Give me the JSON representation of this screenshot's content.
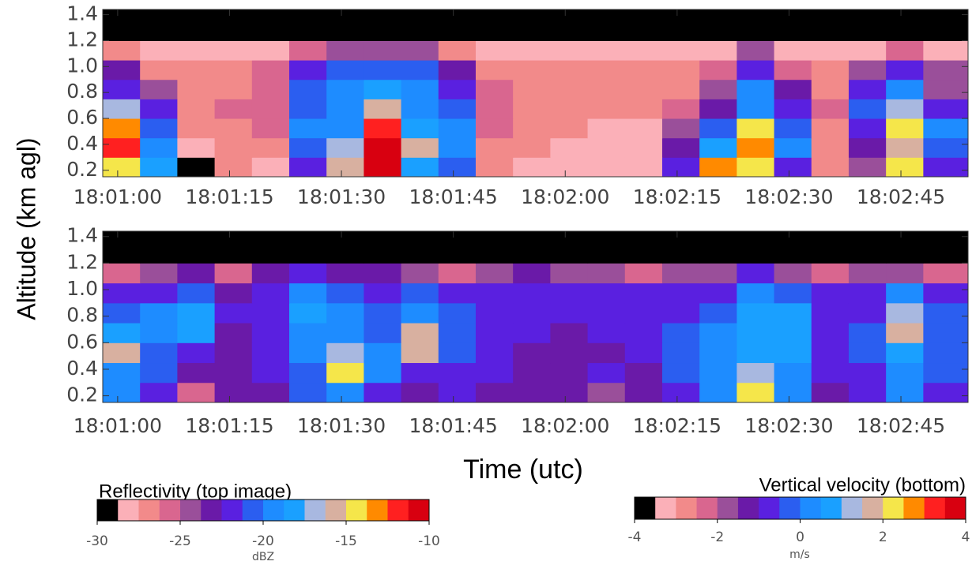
{
  "chart_data": [
    {
      "type": "heatmap",
      "ylabel": "Altitude (km agl)",
      "x_edges": [
        -2,
        3,
        8,
        13,
        18,
        23,
        28,
        33,
        38,
        43,
        48,
        53,
        58,
        63,
        68,
        73,
        78,
        83,
        88,
        93,
        98,
        103,
        108,
        114
      ],
      "y_edges": [
        0.15,
        0.3,
        0.45,
        0.6,
        0.75,
        0.9,
        1.05,
        1.2,
        1.44
      ],
      "values": [
        [
          -14,
          -18,
          -29,
          -27,
          -28,
          -22,
          -16,
          -11,
          -18,
          -21,
          -27,
          -28,
          -28,
          -28,
          -28,
          -22,
          -13,
          -15,
          -22,
          -27,
          -24,
          -14,
          -22
        ],
        [
          -12,
          -20,
          -28,
          -27,
          -27,
          -21,
          -17,
          -11,
          -16,
          -20,
          -27,
          -27,
          -28,
          -28,
          -28,
          -23,
          -18,
          -13,
          -20,
          -27,
          -23,
          -16,
          -21
        ],
        [
          -13,
          -21,
          -27,
          -27,
          -26,
          -20,
          -19,
          -12,
          -18,
          -20,
          -26,
          -27,
          -27,
          -28,
          -28,
          -24,
          -21,
          -14,
          -21,
          -27,
          -22,
          -15,
          -20
        ],
        [
          -17,
          -22,
          -27,
          -26,
          -26,
          -21,
          -20,
          -16,
          -20,
          -21,
          -26,
          -27,
          -27,
          -27,
          -27,
          -26,
          -23,
          -19,
          -22,
          -26,
          -21,
          -17,
          -22
        ],
        [
          -22,
          -25,
          -27,
          -27,
          -26,
          -21,
          -20,
          -18,
          -20,
          -22,
          -26,
          -27,
          -27,
          -27,
          -27,
          -27,
          -24,
          -20,
          -23,
          -27,
          -22,
          -20,
          -24
        ],
        [
          -23,
          -27,
          -27,
          -27,
          -26,
          -22,
          -21,
          -21,
          -21,
          -23,
          -27,
          -27,
          -27,
          -27,
          -27,
          -27,
          -26,
          -22,
          -26,
          -27,
          -25,
          -22,
          -25
        ],
        [
          -27,
          -28,
          -28,
          -28,
          -28,
          -26,
          -24,
          -24,
          -25,
          -27,
          -28,
          -28,
          -28,
          -28,
          -28,
          -28,
          -28,
          -25,
          -28,
          -28,
          -28,
          -26,
          -28
        ],
        [
          -30,
          -30,
          -30,
          -30,
          -30,
          -30,
          -30,
          -30,
          -30,
          -30,
          -30,
          -30,
          -30,
          -30,
          -30,
          -30,
          -30,
          -30,
          -30,
          -30,
          -30,
          -30,
          -30
        ]
      ],
      "xlim": [
        -2,
        114
      ],
      "ylim": [
        0.15,
        1.44
      ],
      "xticks": [
        {
          "value": 0,
          "label": "18:01:00"
        },
        {
          "value": 15,
          "label": "18:01:15"
        },
        {
          "value": 30,
          "label": "18:01:30"
        },
        {
          "value": 45,
          "label": "18:01:45"
        },
        {
          "value": 60,
          "label": "18:02:00"
        },
        {
          "value": 75,
          "label": "18:02:15"
        },
        {
          "value": 90,
          "label": "18:02:30"
        },
        {
          "value": 105,
          "label": "18:02:45"
        }
      ],
      "yticks": [
        {
          "value": 0.2,
          "label": "0.2"
        },
        {
          "value": 0.4,
          "label": "0.4"
        },
        {
          "value": 0.6,
          "label": "0.6"
        },
        {
          "value": 0.8,
          "label": "0.8"
        },
        {
          "value": 1.0,
          "label": "1.0"
        },
        {
          "value": 1.2,
          "label": "1.2"
        },
        {
          "value": 1.4,
          "label": "1.4"
        }
      ],
      "colorbar": {
        "title": "Reflectivity (top image)",
        "unit": "dBZ",
        "clim": [
          -30,
          -10
        ],
        "ticks": [
          -30,
          -25,
          -20,
          -15,
          -10
        ],
        "colors": [
          "#000000",
          "#fbb0b8",
          "#f28a8a",
          "#d9668f",
          "#9a4f9a",
          "#6a1aa8",
          "#5a20e0",
          "#2b5ef0",
          "#1e8cff",
          "#1aa0ff",
          "#a8b8e0",
          "#d8b0a0",
          "#f5e64a",
          "#ff8a00",
          "#ff2020",
          "#d80010"
        ]
      }
    },
    {
      "type": "heatmap",
      "xlabel": "Time (utc)",
      "x_edges": [
        -2,
        3,
        8,
        13,
        18,
        23,
        28,
        33,
        38,
        43,
        48,
        53,
        58,
        63,
        68,
        73,
        78,
        83,
        88,
        93,
        98,
        103,
        108,
        114
      ],
      "y_edges": [
        0.15,
        0.3,
        0.45,
        0.6,
        0.75,
        0.9,
        1.05,
        1.2,
        1.44
      ],
      "values": [
        [
          0.3,
          -0.8,
          -2.5,
          -1.3,
          -1.2,
          -0.5,
          0.4,
          -0.6,
          -1.1,
          -0.8,
          -1.2,
          -1.3,
          -1.4,
          -2.0,
          -1.3,
          -0.6,
          0.3,
          2.2,
          0.2,
          -1.2,
          -0.8,
          0.2,
          -0.7
        ],
        [
          0.4,
          -0.5,
          -1.5,
          -1.2,
          -1.0,
          -0.3,
          2.3,
          0.3,
          -0.8,
          -0.6,
          -1.0,
          -1.2,
          -1.3,
          -1.0,
          -1.1,
          -0.5,
          0.2,
          1.2,
          0.3,
          -1.0,
          -0.6,
          0.4,
          -0.5
        ],
        [
          1.6,
          -0.2,
          -1.0,
          -1.3,
          -0.8,
          0.2,
          1.0,
          0.1,
          1.8,
          -0.3,
          -0.8,
          -1.1,
          -1.2,
          -1.1,
          -1.0,
          -0.4,
          0.1,
          0.6,
          0.5,
          -0.8,
          -0.4,
          0.8,
          -0.3
        ],
        [
          0.6,
          0.1,
          0.5,
          -1.2,
          -0.9,
          0.4,
          0.2,
          -0.2,
          1.6,
          -0.1,
          -0.9,
          -1.0,
          -1.1,
          -1.0,
          -1.0,
          -0.5,
          0.2,
          0.7,
          0.6,
          -0.7,
          -0.5,
          1.5,
          -0.2
        ],
        [
          -0.3,
          0.2,
          0.8,
          -1.0,
          -0.7,
          0.5,
          0.1,
          -0.3,
          0.2,
          -0.2,
          -0.8,
          -0.9,
          -0.8,
          -0.9,
          -1.0,
          -0.6,
          -0.2,
          0.9,
          0.5,
          -0.8,
          -0.6,
          1.4,
          -0.4
        ],
        [
          -0.8,
          -0.6,
          -0.4,
          -1.2,
          -0.8,
          0.1,
          -0.3,
          -0.7,
          -0.4,
          -0.6,
          -0.8,
          -0.9,
          -0.8,
          -1.0,
          -1.0,
          -0.9,
          -0.6,
          0.2,
          -0.3,
          -1.0,
          -0.8,
          0.0,
          -0.8
        ],
        [
          -2.5,
          -2.0,
          -1.5,
          -2.2,
          -1.5,
          -1.0,
          -1.2,
          -1.5,
          -1.8,
          -2.5,
          -2.0,
          -1.5,
          -1.8,
          -2.0,
          -2.2,
          -2.0,
          -1.8,
          -1.0,
          -2.0,
          -2.5,
          -2.0,
          -1.8,
          -2.5
        ],
        [
          -4,
          -4,
          -4,
          -4,
          -4,
          -4,
          -4,
          -4,
          -4,
          -4,
          -4,
          -4,
          -4,
          -4,
          -4,
          -4,
          -4,
          -4,
          -4,
          -4,
          -4,
          -4,
          -4
        ]
      ],
      "xlim": [
        -2,
        114
      ],
      "ylim": [
        0.15,
        1.44
      ],
      "xticks": [
        {
          "value": 0,
          "label": "18:01:00"
        },
        {
          "value": 15,
          "label": "18:01:15"
        },
        {
          "value": 30,
          "label": "18:01:30"
        },
        {
          "value": 45,
          "label": "18:01:45"
        },
        {
          "value": 60,
          "label": "18:02:00"
        },
        {
          "value": 75,
          "label": "18:02:15"
        },
        {
          "value": 90,
          "label": "18:02:30"
        },
        {
          "value": 105,
          "label": "18:02:45"
        }
      ],
      "yticks": [
        {
          "value": 0.2,
          "label": "0.2"
        },
        {
          "value": 0.4,
          "label": "0.4"
        },
        {
          "value": 0.6,
          "label": "0.6"
        },
        {
          "value": 0.8,
          "label": "0.8"
        },
        {
          "value": 1.0,
          "label": "1.0"
        },
        {
          "value": 1.2,
          "label": "1.2"
        },
        {
          "value": 1.4,
          "label": "1.4"
        }
      ],
      "colorbar": {
        "title": "Vertical velocity (bottom)",
        "unit": "m/s",
        "clim": [
          -4,
          4
        ],
        "ticks": [
          -4,
          -2,
          0,
          2,
          4
        ],
        "colors": [
          "#000000",
          "#fbb0b8",
          "#f28a8a",
          "#d9668f",
          "#9a4f9a",
          "#6a1aa8",
          "#5a20e0",
          "#2b5ef0",
          "#1e8cff",
          "#1aa0ff",
          "#a8b8e0",
          "#d8b0a0",
          "#f5e64a",
          "#ff8a00",
          "#ff2020",
          "#d80010"
        ]
      }
    }
  ]
}
